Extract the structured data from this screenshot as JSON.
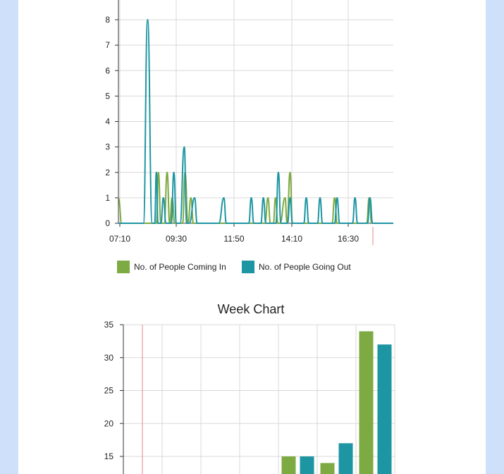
{
  "colors": {
    "coming_in": "#7daa42",
    "going_out": "#1e95a3",
    "grid": "#d9d9d9",
    "axis": "#333333",
    "marker": "#e48a8a",
    "background": "#cfe0fb",
    "panel": "#ffffff"
  },
  "chart_data": [
    {
      "type": "line",
      "title": "",
      "xlabel": "",
      "ylabel": "",
      "x_tick_labels": [
        "07:10",
        "09:30",
        "11:50",
        "14:10",
        "16:30"
      ],
      "y_ticks": [
        0,
        1,
        2,
        3,
        4,
        5,
        6,
        7,
        8
      ],
      "ylim": [
        0,
        8
      ],
      "x_unit": "minutes since 07:10",
      "xlim": [
        0,
        660
      ],
      "grid": true,
      "legend": "bottom",
      "series": [
        {
          "name": "No. of People Coming In",
          "color": "#7daa42",
          "points": [
            [
              0,
              1
            ],
            [
              8,
              0
            ],
            [
              82,
              0
            ],
            [
              91,
              0
            ],
            [
              96,
              2
            ],
            [
              102,
              0
            ],
            [
              110,
              0
            ],
            [
              117,
              2
            ],
            [
              123,
              0
            ],
            [
              129,
              1
            ],
            [
              135,
              0
            ],
            [
              154,
              0
            ],
            [
              160,
              2
            ],
            [
              167,
              0
            ],
            [
              174,
              1
            ],
            [
              180,
              0
            ],
            [
              196,
              0
            ],
            [
              222,
              0
            ],
            [
              272,
              0
            ],
            [
              290,
              0
            ],
            [
              352,
              0
            ],
            [
              359,
              1
            ],
            [
              365,
              0
            ],
            [
              372,
              0
            ],
            [
              377,
              1
            ],
            [
              383,
              0
            ],
            [
              388,
              0
            ],
            [
              400,
              1
            ],
            [
              405,
              0
            ],
            [
              412,
              2
            ],
            [
              418,
              0
            ],
            [
              513,
              0
            ],
            [
              519,
              1
            ],
            [
              525,
              0
            ],
            [
              596,
              0
            ],
            [
              602,
              1
            ],
            [
              608,
              0
            ],
            [
              620,
              0
            ],
            [
              660,
              0
            ]
          ]
        },
        {
          "name": "No. of People Going Out",
          "color": "#1e95a3",
          "points": [
            [
              0,
              0
            ],
            [
              60,
              0
            ],
            [
              70,
              8
            ],
            [
              81,
              0
            ],
            [
              87,
              0
            ],
            [
              91,
              2
            ],
            [
              95,
              0
            ],
            [
              102,
              0
            ],
            [
              108,
              1
            ],
            [
              114,
              0
            ],
            [
              127,
              0
            ],
            [
              133,
              2
            ],
            [
              139,
              0
            ],
            [
              148,
              0
            ],
            [
              158,
              3
            ],
            [
              164,
              0
            ],
            [
              170,
              0
            ],
            [
              183,
              1
            ],
            [
              189,
              0
            ],
            [
              241,
              0
            ],
            [
              253,
              1
            ],
            [
              259,
              0
            ],
            [
              313,
              0
            ],
            [
              319,
              1
            ],
            [
              325,
              0
            ],
            [
              342,
              0
            ],
            [
              348,
              1
            ],
            [
              354,
              0
            ],
            [
              378,
              0
            ],
            [
              384,
              2
            ],
            [
              390,
              0
            ],
            [
              406,
              0
            ],
            [
              412,
              1
            ],
            [
              418,
              0
            ],
            [
              445,
              0
            ],
            [
              451,
              1
            ],
            [
              457,
              0
            ],
            [
              478,
              0
            ],
            [
              484,
              1
            ],
            [
              490,
              0
            ],
            [
              519,
              0
            ],
            [
              525,
              1
            ],
            [
              531,
              0
            ],
            [
              562,
              0
            ],
            [
              568,
              1
            ],
            [
              574,
              0
            ],
            [
              598,
              0
            ],
            [
              604,
              1
            ],
            [
              610,
              0
            ],
            [
              620,
              0
            ],
            [
              660,
              0
            ]
          ]
        }
      ]
    },
    {
      "type": "bar",
      "title": "Week Chart",
      "xlabel": "",
      "ylabel": "",
      "categories": [
        "",
        "",
        "",
        "",
        "",
        "",
        ""
      ],
      "y_ticks": [
        15,
        20,
        25,
        30,
        35
      ],
      "ylim": [
        12,
        35
      ],
      "grid": true,
      "series": [
        {
          "name": "No. of People Coming In",
          "color": "#7daa42",
          "values": [
            null,
            null,
            null,
            null,
            15,
            14,
            34
          ]
        },
        {
          "name": "No. of People Going Out",
          "color": "#1e95a3",
          "values": [
            null,
            null,
            null,
            null,
            15,
            17,
            32
          ]
        }
      ]
    }
  ]
}
